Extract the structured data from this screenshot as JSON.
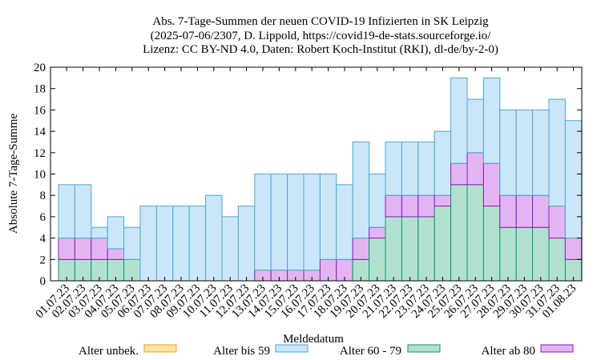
{
  "chart_data": {
    "type": "bar",
    "stacked": true,
    "title_lines": [
      "Abs. 7-Tage-Summen der neuen COVID-19 Infizierten in SK Leipzig",
      "(2025-07-06/2307, D. Lippold, https://covid19-de-stats.sourceforge.io/",
      "Lizenz: CC BY-ND 4.0, Daten: Robert Koch-Institut (RKI), dl-de/by-2-0)"
    ],
    "xlabel": "Meldedatum",
    "ylabel": "Absolute 7-Tage-Summe",
    "ylim": [
      0,
      20
    ],
    "yticks": [
      0,
      2,
      4,
      6,
      8,
      10,
      12,
      14,
      16,
      18,
      20
    ],
    "grid": false,
    "legend_position": "bottom",
    "categories": [
      "01.07.23",
      "02.07.23",
      "03.07.23",
      "04.07.23",
      "05.07.23",
      "06.07.23",
      "07.07.23",
      "08.07.23",
      "09.07.23",
      "10.07.23",
      "11.07.23",
      "12.07.23",
      "13.07.23",
      "14.07.23",
      "15.07.23",
      "16.07.23",
      "17.07.23",
      "18.07.23",
      "19.07.23",
      "20.07.23",
      "21.07.23",
      "22.07.23",
      "23.07.23",
      "24.07.23",
      "25.07.23",
      "26.07.23",
      "27.07.23",
      "28.07.23",
      "29.07.23",
      "30.07.23",
      "31.07.23",
      "01.08.23"
    ],
    "series": [
      {
        "name": "Alter unbek.",
        "fill": "#fde3a7",
        "stroke": "#e6a21f",
        "values": [
          0,
          0,
          0,
          0,
          0,
          0,
          0,
          0,
          0,
          0,
          0,
          0,
          0,
          0,
          0,
          0,
          0,
          0,
          0,
          0,
          0,
          0,
          0,
          0,
          0,
          0,
          0,
          0,
          0,
          0,
          0,
          0
        ]
      },
      {
        "name": "Alter bis 59",
        "fill": "#cbe6f8",
        "stroke": "#4aa8d8",
        "values": [
          5,
          5,
          1,
          3,
          3,
          7,
          7,
          7,
          7,
          8,
          6,
          7,
          9,
          9,
          9,
          9,
          8,
          7,
          9,
          5,
          5,
          5,
          5,
          6,
          8,
          5,
          8,
          8,
          8,
          8,
          10,
          11
        ]
      },
      {
        "name": "Alter 60 - 79",
        "fill": "#b2e2cf",
        "stroke": "#14946a",
        "values": [
          2,
          2,
          2,
          2,
          2,
          0,
          0,
          0,
          0,
          0,
          0,
          0,
          0,
          0,
          0,
          0,
          0,
          0,
          2,
          4,
          6,
          6,
          6,
          7,
          9,
          9,
          7,
          5,
          5,
          5,
          4,
          2
        ]
      },
      {
        "name": "Alter ab 80",
        "fill": "#e3b6f2",
        "stroke": "#8e19b8",
        "values": [
          2,
          2,
          2,
          1,
          0,
          0,
          0,
          0,
          0,
          0,
          0,
          0,
          1,
          1,
          1,
          1,
          2,
          2,
          2,
          1,
          2,
          2,
          2,
          1,
          2,
          3,
          4,
          3,
          3,
          3,
          3,
          2
        ]
      }
    ]
  }
}
